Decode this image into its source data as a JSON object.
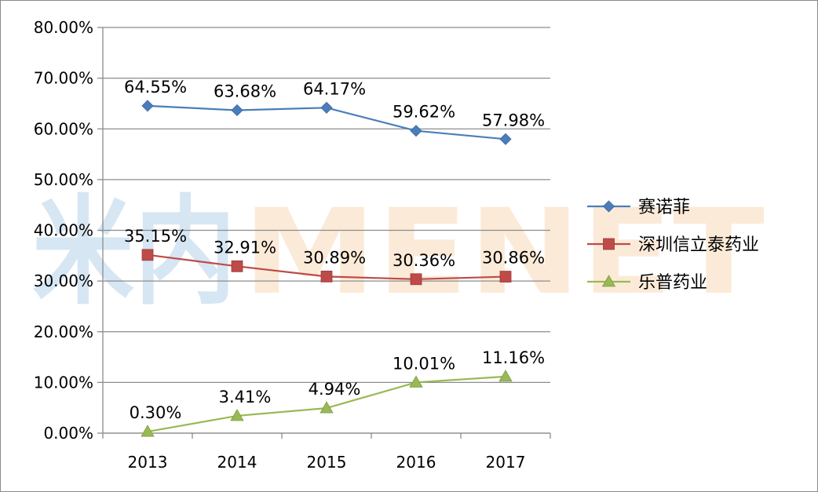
{
  "chart_data": {
    "type": "line",
    "title": "",
    "xlabel": "",
    "ylabel": "",
    "categories": [
      "2013",
      "2014",
      "2015",
      "2016",
      "2017"
    ],
    "ylim": [
      0,
      80
    ],
    "y_ticks": [
      "0.00%",
      "10.00%",
      "20.00%",
      "30.00%",
      "40.00%",
      "50.00%",
      "60.00%",
      "70.00%",
      "80.00%"
    ],
    "grid": true,
    "legend_position": "right",
    "series": [
      {
        "name": "赛诺菲",
        "values": [
          64.55,
          63.68,
          64.17,
          59.62,
          57.98
        ],
        "labels": [
          "64.55%",
          "63.68%",
          "64.17%",
          "59.62%",
          "57.98%"
        ],
        "color": "#4a7ebb",
        "marker": "diamond"
      },
      {
        "name": "深圳信立泰药业",
        "values": [
          35.15,
          32.91,
          30.89,
          30.36,
          30.86
        ],
        "labels": [
          "35.15%",
          "32.91%",
          "30.89%",
          "30.36%",
          "30.86%"
        ],
        "color": "#be4b48",
        "marker": "square"
      },
      {
        "name": "乐普药业",
        "values": [
          0.3,
          3.41,
          4.94,
          10.01,
          11.16
        ],
        "labels": [
          "0.30%",
          "3.41%",
          "4.94%",
          "10.01%",
          "11.16%"
        ],
        "color": "#98b954",
        "marker": "triangle"
      }
    ]
  },
  "watermark": {
    "left_text": "米内",
    "right_text": "MENET",
    "left_color": "#c9def0",
    "right_color": "#fbe3cc"
  }
}
